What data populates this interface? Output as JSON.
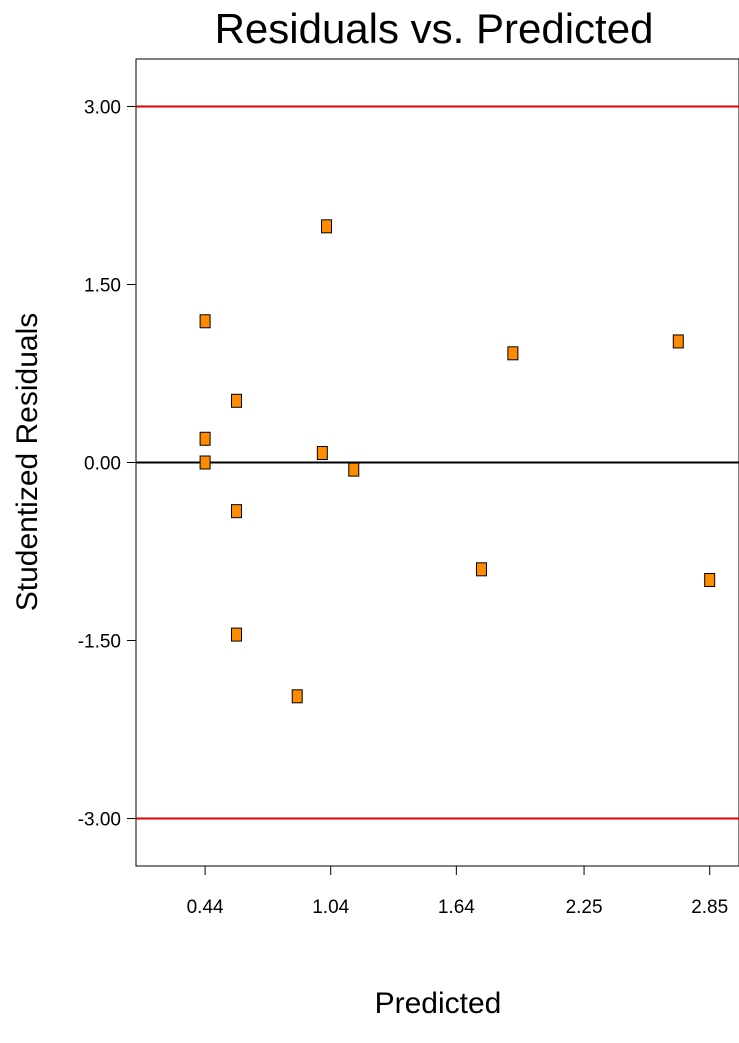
{
  "chart_data": {
    "type": "scatter",
    "title": "Residuals vs. Predicted",
    "xlabel": "Predicted",
    "ylabel": "Studentized Residuals",
    "xlim": [
      0.11,
      2.99
    ],
    "ylim": [
      -3.4,
      3.4
    ],
    "x_ticks": [
      {
        "value": 0.44,
        "label": "0.44"
      },
      {
        "value": 1.04,
        "label": "1.04"
      },
      {
        "value": 1.64,
        "label": "1.64"
      },
      {
        "value": 2.25,
        "label": "2.25"
      },
      {
        "value": 2.85,
        "label": "2.85"
      }
    ],
    "y_ticks": [
      {
        "value": 3.0,
        "label": "3.00"
      },
      {
        "value": 1.5,
        "label": "1.50"
      },
      {
        "value": 0.0,
        "label": "0.00"
      },
      {
        "value": -1.5,
        "label": "-1.50"
      },
      {
        "value": -3.0,
        "label": "-3.00"
      }
    ],
    "reference_lines": [
      {
        "y": 3.0,
        "color": "#e00000"
      },
      {
        "y": 0.0,
        "color": "#000000"
      },
      {
        "y": -3.0,
        "color": "#e00000"
      }
    ],
    "points": [
      {
        "x": 0.44,
        "y": 1.19
      },
      {
        "x": 0.44,
        "y": 0.2
      },
      {
        "x": 0.44,
        "y": 0.0
      },
      {
        "x": 0.59,
        "y": 0.52
      },
      {
        "x": 0.59,
        "y": -0.41
      },
      {
        "x": 0.59,
        "y": -1.45
      },
      {
        "x": 0.88,
        "y": -1.97
      },
      {
        "x": 1.0,
        "y": 0.08
      },
      {
        "x": 1.02,
        "y": 1.99
      },
      {
        "x": 1.15,
        "y": -0.06
      },
      {
        "x": 1.76,
        "y": -0.9
      },
      {
        "x": 1.91,
        "y": 0.92
      },
      {
        "x": 2.7,
        "y": 1.02
      },
      {
        "x": 2.85,
        "y": -0.99
      }
    ],
    "marker_color": "#ff8c00",
    "marker_edge_color": "#000000",
    "grid": false,
    "legend": "none"
  }
}
